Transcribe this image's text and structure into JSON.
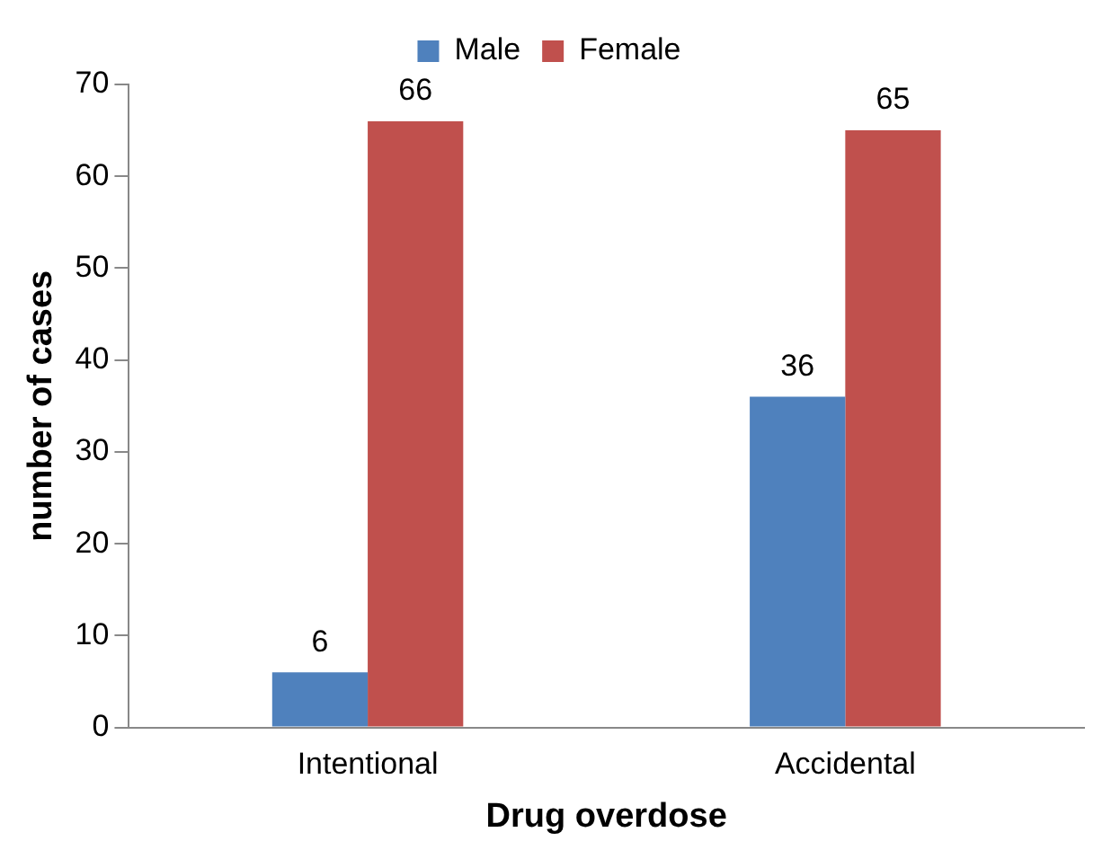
{
  "chart_data": {
    "type": "bar",
    "xlabel": "Drug overdose",
    "ylabel": "number of cases",
    "categories": [
      "Intentional",
      "Accidental"
    ],
    "series": [
      {
        "name": "Male",
        "color": "#4f81bd",
        "values": [
          6,
          36
        ]
      },
      {
        "name": "Female",
        "color": "#c0504d",
        "values": [
          66,
          65
        ]
      }
    ],
    "ylim": [
      0,
      70
    ],
    "yticks": [
      0,
      10,
      20,
      30,
      40,
      50,
      60,
      70
    ],
    "grid": false,
    "legend": "top",
    "data_labels": true
  }
}
